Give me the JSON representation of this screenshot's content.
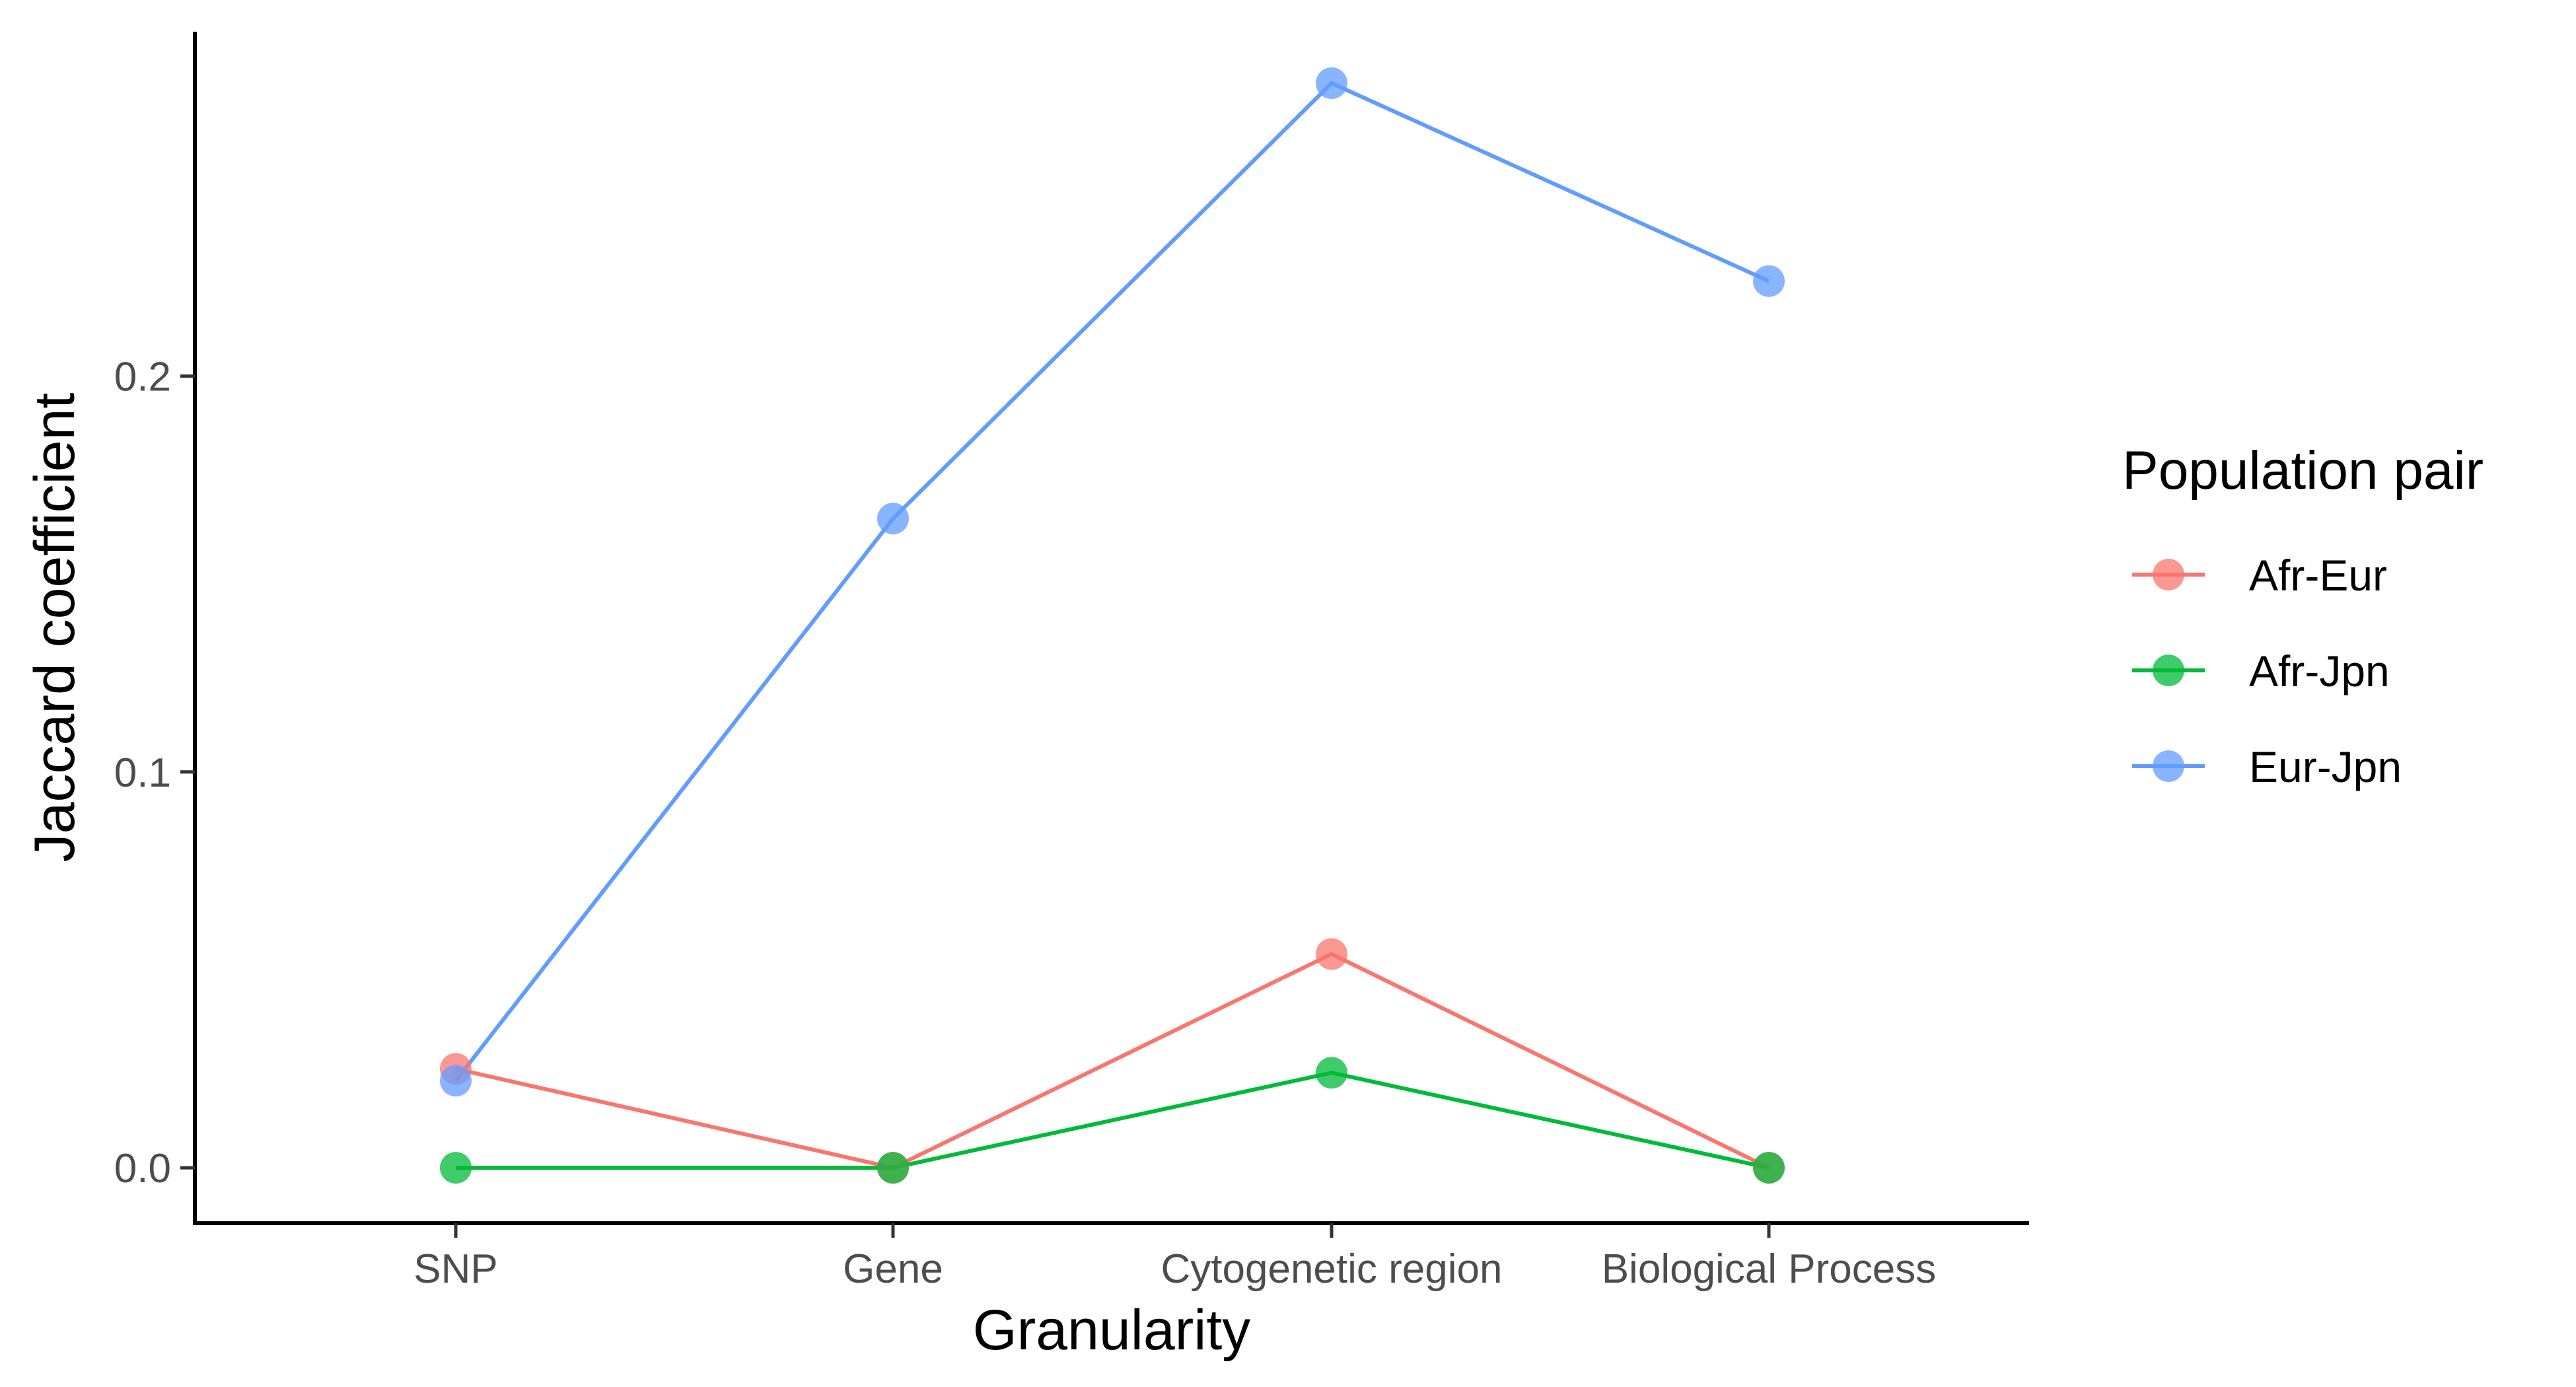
{
  "chart_data": {
    "type": "line",
    "title": "",
    "xlabel": "Granularity",
    "ylabel": "Jaccard coefficient",
    "categories": [
      "SNP",
      "Gene",
      "Cytogenetic region",
      "Biological Process"
    ],
    "ylim": [
      -0.014,
      0.287
    ],
    "yticks": [
      0.0,
      0.1,
      0.2
    ],
    "ytick_labels": [
      "0.0",
      "0.1",
      "0.2"
    ],
    "grid": false,
    "legend": {
      "title": "Population pair",
      "position": "right"
    },
    "series": [
      {
        "name": "Afr-Eur",
        "color": "#F8766D",
        "values": [
          0.025,
          0.0,
          0.054,
          0.0
        ]
      },
      {
        "name": "Afr-Jpn",
        "color": "#00BA38",
        "values": [
          0.0,
          0.0,
          0.024,
          0.0
        ]
      },
      {
        "name": "Eur-Jpn",
        "color": "#619CFF",
        "values": [
          0.022,
          0.164,
          0.274,
          0.224
        ]
      }
    ]
  }
}
